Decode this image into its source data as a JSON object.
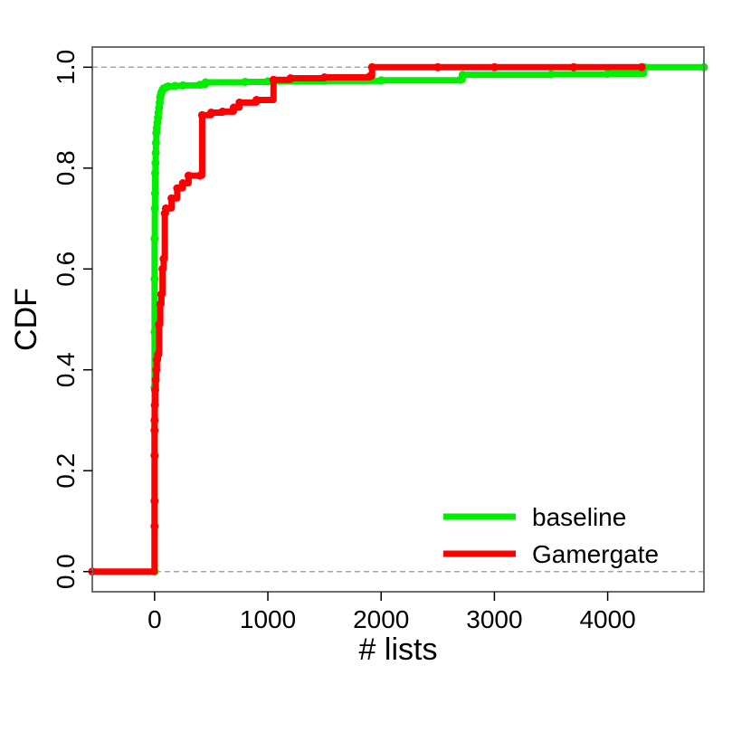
{
  "chart_data": {
    "type": "line",
    "title": "",
    "xlabel": "# lists",
    "ylabel": "CDF",
    "xlim": [
      -550,
      4850
    ],
    "ylim": [
      -0.04,
      1.04
    ],
    "xticks": [
      0,
      1000,
      2000,
      3000,
      4000
    ],
    "xtick_labels": [
      "0",
      "1000",
      "2000",
      "3000",
      "4000"
    ],
    "yticks": [
      0.0,
      0.2,
      0.4,
      0.6,
      0.8,
      1.0
    ],
    "ytick_labels": [
      "0.0",
      "0.2",
      "0.4",
      "0.6",
      "0.8",
      "1.0"
    ],
    "reference_lines": [
      0,
      1
    ],
    "grid": false,
    "legend_position": "bottom-right",
    "series": [
      {
        "name": "baseline",
        "color": "#00ee00",
        "x": [
          0,
          0,
          0,
          0,
          0,
          2,
          4,
          5,
          8,
          10,
          12,
          15,
          20,
          25,
          30,
          35,
          40,
          45,
          50,
          55,
          60,
          70,
          80,
          100,
          120,
          180,
          250,
          400,
          450,
          800,
          1000,
          1500,
          2000,
          2700,
          2720,
          3500,
          4000,
          4320,
          4850
        ],
        "y": [
          0.0,
          0.365,
          0.475,
          0.58,
          0.66,
          0.72,
          0.75,
          0.79,
          0.81,
          0.83,
          0.85,
          0.87,
          0.88,
          0.89,
          0.9,
          0.91,
          0.92,
          0.93,
          0.94,
          0.945,
          0.95,
          0.955,
          0.958,
          0.96,
          0.962,
          0.963,
          0.964,
          0.965,
          0.97,
          0.971,
          0.972,
          0.973,
          0.974,
          0.975,
          0.985,
          0.986,
          0.987,
          1.0,
          1.0
        ]
      },
      {
        "name": "Gamergate",
        "color": "#ff0000",
        "x": [
          -550,
          0,
          0,
          0,
          0,
          0,
          2,
          5,
          10,
          15,
          20,
          30,
          40,
          50,
          60,
          70,
          80,
          90,
          100,
          150,
          200,
          250,
          300,
          400,
          420,
          500,
          600,
          700,
          750,
          900,
          1050,
          1200,
          1500,
          1900,
          1920,
          2500,
          3000,
          3700,
          4300
        ],
        "y": [
          0.0,
          0.09,
          0.14,
          0.23,
          0.28,
          0.3,
          0.33,
          0.36,
          0.38,
          0.4,
          0.42,
          0.43,
          0.49,
          0.53,
          0.55,
          0.6,
          0.62,
          0.71,
          0.72,
          0.74,
          0.76,
          0.77,
          0.785,
          0.785,
          0.905,
          0.91,
          0.912,
          0.92,
          0.93,
          0.935,
          0.975,
          0.978,
          0.98,
          0.982,
          1.0,
          1.0,
          1.0,
          1.0,
          1.0
        ]
      }
    ]
  }
}
